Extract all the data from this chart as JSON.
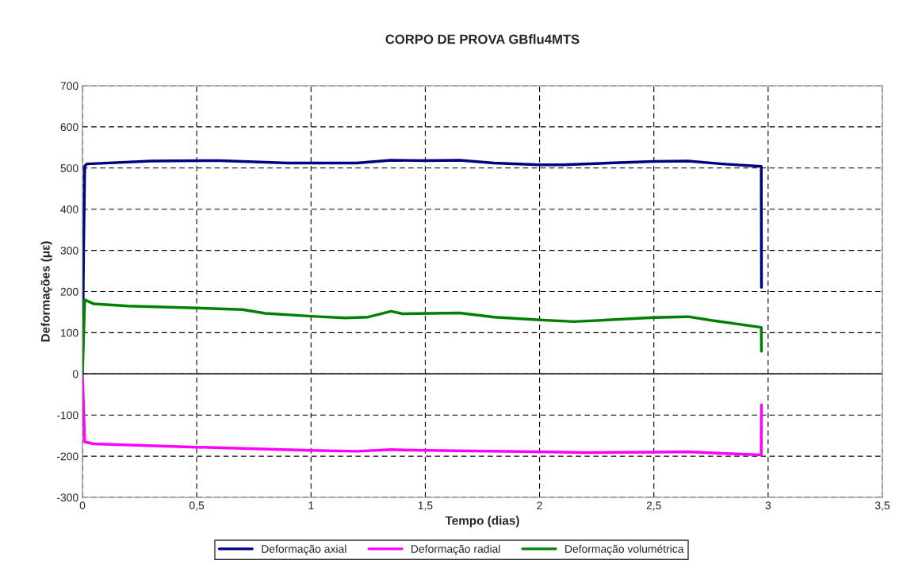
{
  "chart_data": {
    "type": "line",
    "title": "CORPO DE PROVA GBflu4MTS",
    "xlabel": "Tempo (dias)",
    "ylabel": "Deformações (με)",
    "xlim": [
      0,
      3.5
    ],
    "xticks": [
      0,
      {
        "value": 0.5,
        "label": "0,5"
      },
      1,
      {
        "value": 1.5,
        "label": "1,5"
      },
      2,
      {
        "value": 2.5,
        "label": "2,5"
      },
      3,
      {
        "value": 3.5,
        "label": "3,5"
      }
    ],
    "ylim": [
      -300,
      700
    ],
    "yticks": [
      -300,
      -200,
      -100,
      0,
      100,
      200,
      300,
      400,
      500,
      600,
      700
    ],
    "grid": true,
    "legend": "bottom",
    "line_style": "solid",
    "marker": "none",
    "series": [
      {
        "name": "Deformação axial",
        "color": "#000080",
        "x": [
          0,
          0.005,
          0.01,
          0.02,
          0.3,
          0.6,
          0.9,
          1.2,
          1.35,
          1.5,
          1.65,
          1.8,
          2.0,
          2.1,
          2.3,
          2.5,
          2.65,
          2.8,
          2.97,
          2.971
        ],
        "values": [
          0,
          300,
          505,
          510,
          517,
          518,
          512,
          512,
          519,
          518,
          519,
          512,
          508,
          508,
          512,
          516,
          517,
          510,
          504,
          210
        ]
      },
      {
        "name": "Deformação radial",
        "color": "#ff00ff",
        "x": [
          0,
          0.01,
          0.05,
          0.5,
          1.0,
          1.2,
          1.35,
          1.5,
          2.0,
          2.2,
          2.5,
          2.65,
          2.8,
          2.97,
          2.971
        ],
        "values": [
          0,
          -165,
          -170,
          -178,
          -186,
          -188,
          -184,
          -186,
          -189,
          -191,
          -190,
          -189,
          -193,
          -197,
          -75
        ]
      },
      {
        "name": "Deformação volumétrica",
        "color": "#008000",
        "x": [
          0,
          0.01,
          0.05,
          0.2,
          0.5,
          0.7,
          0.8,
          1.0,
          1.15,
          1.25,
          1.35,
          1.4,
          1.65,
          1.8,
          2.0,
          2.15,
          2.3,
          2.5,
          2.65,
          2.75,
          2.97,
          2.971
        ],
        "values": [
          0,
          180,
          170,
          165,
          160,
          156,
          147,
          140,
          136,
          138,
          152,
          146,
          148,
          138,
          131,
          127,
          131,
          137,
          139,
          130,
          113,
          55
        ]
      }
    ]
  }
}
